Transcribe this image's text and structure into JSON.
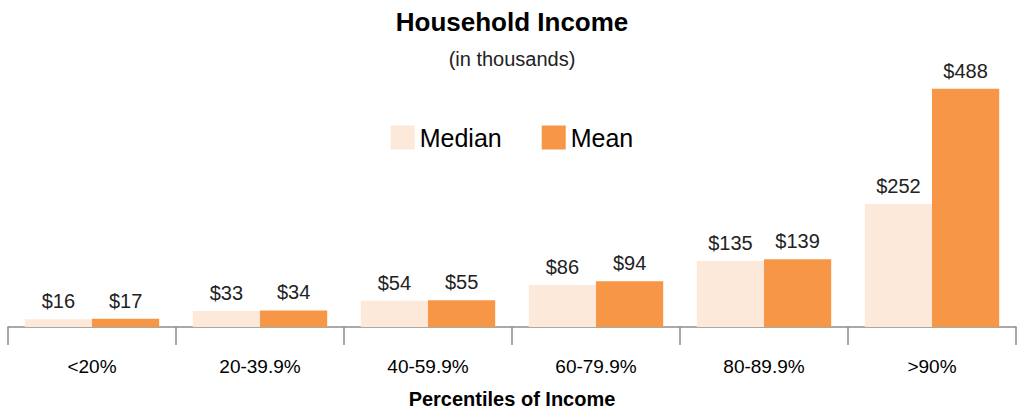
{
  "chart_data": {
    "type": "bar",
    "title": "Household Income",
    "subtitle": "(in thousands)",
    "x_label": "Percentiles of Income",
    "categories": [
      "<20%",
      "20-39.9%",
      "40-59.9%",
      "60-79.9%",
      "80-89.9%",
      ">90%"
    ],
    "series": [
      {
        "name": "Median",
        "color": "#fde9d9",
        "values": [
          16,
          33,
          54,
          86,
          135,
          252
        ],
        "value_labels": [
          "$16",
          "$33",
          "$54",
          "$86",
          "$135",
          "$252"
        ]
      },
      {
        "name": "Mean",
        "color": "#f79646",
        "values": [
          17,
          34,
          55,
          94,
          139,
          488
        ],
        "value_labels": [
          "$17",
          "$34",
          "$55",
          "$94",
          "$139",
          "$488"
        ]
      }
    ],
    "ylim": [
      0,
      500
    ],
    "yticks": [
      0,
      100,
      200,
      300,
      400,
      500
    ],
    "grid": false,
    "legend": "top",
    "data_labels": true,
    "tick_labels": "x"
  }
}
